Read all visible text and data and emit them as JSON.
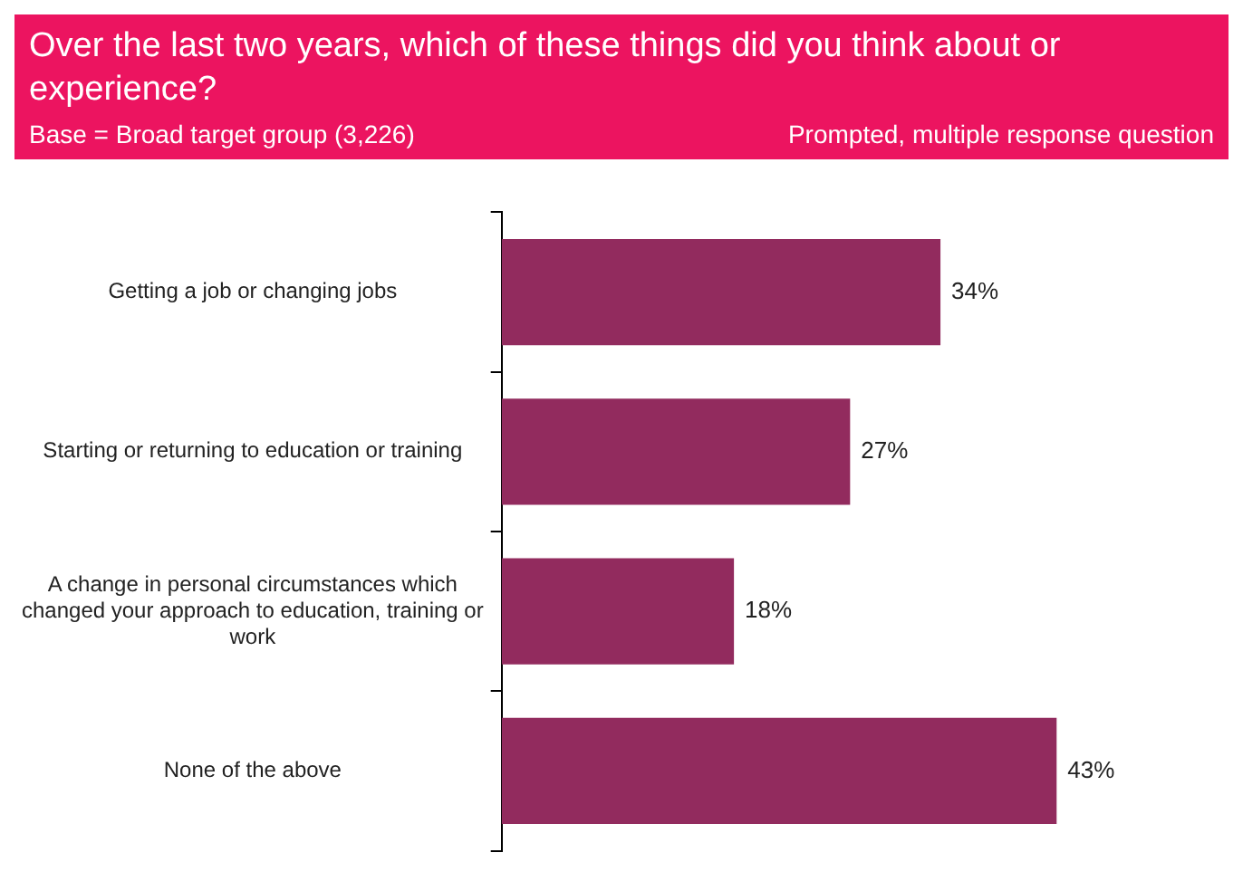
{
  "chart_data": {
    "type": "bar",
    "orientation": "horizontal",
    "title": "Over the last two years, which of these things did you think about or experience?",
    "subtitle": "Base = Broad target group (3,226)",
    "annotations": [
      "Prompted, multiple response question"
    ],
    "categories": [
      "Getting a job or changing jobs",
      "Starting or returning to education or training",
      "A change in personal circumstances which changed your approach to education, training or work",
      "None of the above"
    ],
    "values": [
      34,
      27,
      18,
      43
    ],
    "value_labels": [
      "34%",
      "27%",
      "18%",
      "43%"
    ],
    "color": "#922b5e",
    "legend": false
  }
}
